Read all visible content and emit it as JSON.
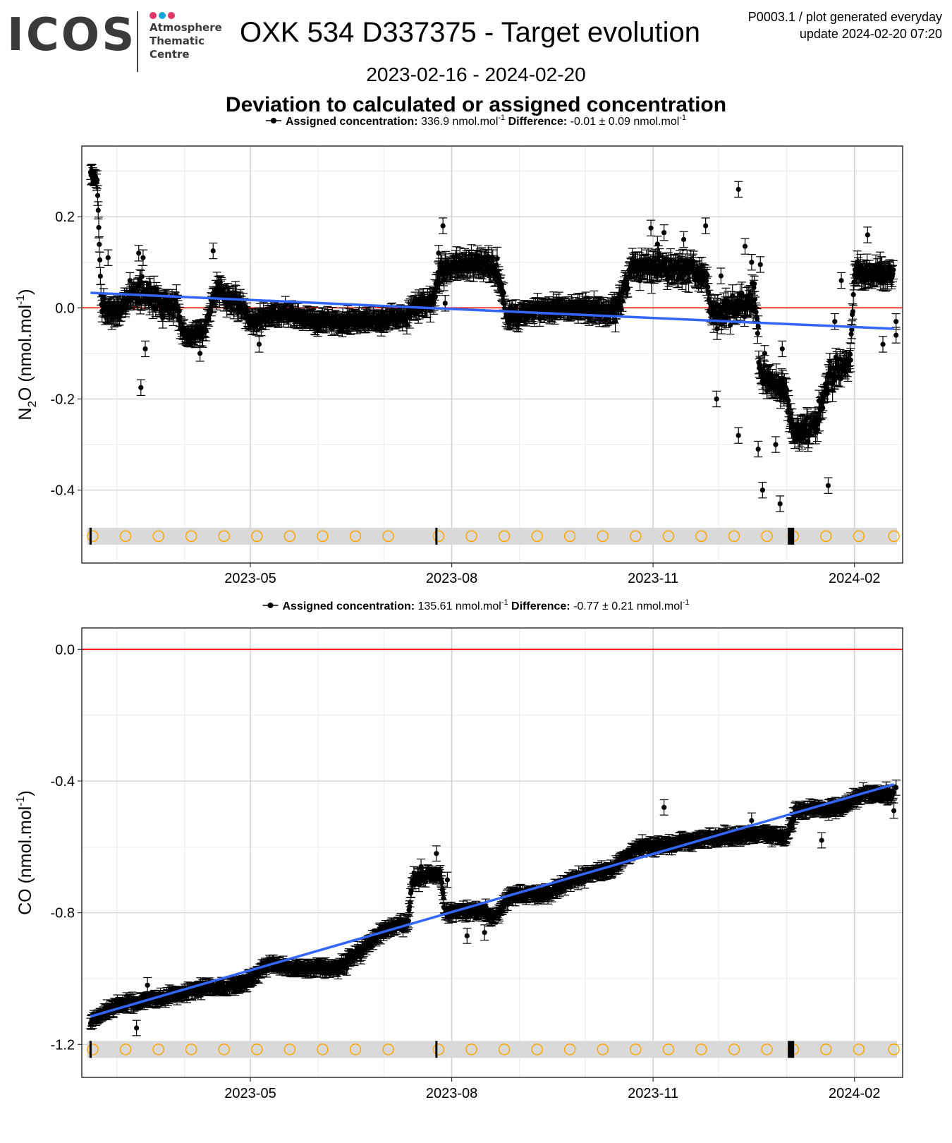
{
  "header": {
    "logo_text": "ICOS",
    "logo_subtitle_lines": [
      "Atmosphere",
      "Thematic",
      "Centre"
    ],
    "logo_dot_colors": [
      "#e4366b",
      "#1aa6d9",
      "#e4366b"
    ],
    "title": "OXK 534 D337375 - Target evolution",
    "meta_line1": "P0003.1 / plot generated everyday",
    "meta_line2": "update  2024-02-20 07:20",
    "date_range": "2023-02-16 - 2024-02-20",
    "section_title": "Deviation to calculated or assigned concentration"
  },
  "colors": {
    "points": "#000000",
    "trend": "#3366ff",
    "reference": "#ff0000",
    "panel_border": "#333333",
    "grid_major": "#d0d0d0",
    "grid_minor": "#ebebeb",
    "band": "#d9d9d9",
    "circle": "#ffa500"
  },
  "chart_data": [
    {
      "type": "scatter",
      "ylabel_main": "N",
      "ylabel_sub": "2",
      "ylabel_rest": "O (nmol.mol",
      "ylabel_sup": "-1",
      "ylabel_close": ")",
      "legend": {
        "assigned_label": "Assigned concentration:",
        "assigned_value": "336.9 nmol.mol",
        "difference_label": "Difference:",
        "difference_value": "-0.01 ± 0.09 nmol.mol",
        "unit_sup": "-1"
      },
      "x_range": [
        "2023-02-13",
        "2024-02-23"
      ],
      "x_ticks": [
        "2023-05",
        "2023-08",
        "2023-11",
        "2024-02"
      ],
      "x_tick_dates": [
        "2023-05-01",
        "2023-08-01",
        "2023-11-01",
        "2024-02-01"
      ],
      "y_range": [
        -0.56,
        0.355
      ],
      "y_ticks": [
        0.2,
        0.0,
        -0.2,
        -0.4
      ],
      "y_tick_labels": [
        "0.2",
        "0.0",
        "-0.2",
        "-0.4"
      ],
      "reference_y": 0.0,
      "trend": {
        "x": [
          "2023-02-17",
          "2024-02-19"
        ],
        "y": [
          0.033,
          -0.046
        ]
      },
      "band_y": -0.501,
      "cycle_markers": [
        "2023-02-17",
        "2023-07-25",
        "2024-01-03"
      ],
      "circle_dates": [
        "2023-02-18",
        "2023-03-05",
        "2023-03-20",
        "2023-04-04",
        "2023-04-19",
        "2023-05-04",
        "2023-05-19",
        "2023-06-03",
        "2023-06-18",
        "2023-07-03",
        "2023-07-26",
        "2023-08-10",
        "2023-08-25",
        "2023-09-09",
        "2023-09-24",
        "2023-10-09",
        "2023-10-24",
        "2023-11-08",
        "2023-11-23",
        "2023-12-08",
        "2023-12-23",
        "2024-01-04",
        "2024-01-19",
        "2024-02-03",
        "2024-02-19"
      ],
      "series_profile": [
        [
          "2023-02-17",
          0.295,
          0.012,
          0.03
        ],
        [
          "2023-02-20",
          0.28,
          0.012,
          0.03
        ],
        [
          "2023-02-22",
          0.0,
          0.04,
          0.035
        ],
        [
          "2023-03-01",
          -0.01,
          0.04,
          0.035
        ],
        [
          "2023-03-10",
          0.04,
          0.05,
          0.035
        ],
        [
          "2023-03-20",
          0.02,
          0.06,
          0.035
        ],
        [
          "2023-03-28",
          0.0,
          0.05,
          0.035
        ],
        [
          "2023-04-01",
          -0.06,
          0.03,
          0.03
        ],
        [
          "2023-04-10",
          -0.05,
          0.03,
          0.03
        ],
        [
          "2023-04-15",
          0.04,
          0.05,
          0.035
        ],
        [
          "2023-04-28",
          0.0,
          0.04,
          0.035
        ],
        [
          "2023-05-01",
          -0.03,
          0.03,
          0.03
        ],
        [
          "2023-05-15",
          -0.01,
          0.035,
          0.03
        ],
        [
          "2023-06-01",
          -0.03,
          0.03,
          0.03
        ],
        [
          "2023-06-20",
          -0.03,
          0.03,
          0.03
        ],
        [
          "2023-07-10",
          -0.02,
          0.03,
          0.03
        ],
        [
          "2023-07-24",
          0.02,
          0.05,
          0.035
        ],
        [
          "2023-07-27",
          0.08,
          0.06,
          0.035
        ],
        [
          "2023-08-10",
          0.1,
          0.05,
          0.035
        ],
        [
          "2023-08-22",
          0.08,
          0.05,
          0.035
        ],
        [
          "2023-08-26",
          -0.02,
          0.035,
          0.03
        ],
        [
          "2023-09-20",
          0.0,
          0.035,
          0.03
        ],
        [
          "2023-10-15",
          -0.01,
          0.04,
          0.035
        ],
        [
          "2023-10-23",
          0.09,
          0.05,
          0.035
        ],
        [
          "2023-11-10",
          0.09,
          0.05,
          0.035
        ],
        [
          "2023-11-25",
          0.07,
          0.05,
          0.035
        ],
        [
          "2023-11-28",
          -0.02,
          0.06,
          0.035
        ],
        [
          "2023-12-10",
          0.0,
          0.06,
          0.035
        ],
        [
          "2023-12-18",
          0.02,
          0.07,
          0.035
        ],
        [
          "2023-12-20",
          -0.15,
          0.07,
          0.035
        ],
        [
          "2023-12-31",
          -0.18,
          0.05,
          0.035
        ],
        [
          "2024-01-04",
          -0.28,
          0.05,
          0.035
        ],
        [
          "2024-01-15",
          -0.25,
          0.05,
          0.035
        ],
        [
          "2024-01-20",
          -0.15,
          0.06,
          0.035
        ],
        [
          "2024-01-30",
          -0.12,
          0.05,
          0.035
        ],
        [
          "2024-02-01",
          0.08,
          0.04,
          0.035
        ],
        [
          "2024-02-19",
          0.07,
          0.04,
          0.035
        ]
      ],
      "points_per_day": 4,
      "outliers": [
        [
          "2023-02-25",
          0.11
        ],
        [
          "2023-03-07",
          0.06
        ],
        [
          "2023-03-12",
          -0.175
        ],
        [
          "2023-03-14",
          -0.09
        ],
        [
          "2023-03-11",
          0.12
        ],
        [
          "2023-03-13",
          0.11
        ],
        [
          "2023-04-14",
          0.125
        ],
        [
          "2023-04-08",
          -0.1
        ],
        [
          "2023-05-05",
          -0.08
        ],
        [
          "2023-07-28",
          0.18
        ],
        [
          "2023-07-26",
          0.12
        ],
        [
          "2023-07-29",
          0.01
        ],
        [
          "2023-10-31",
          0.175
        ],
        [
          "2023-11-06",
          0.165
        ],
        [
          "2023-11-03",
          0.14
        ],
        [
          "2023-11-15",
          0.15
        ],
        [
          "2023-11-25",
          0.18
        ],
        [
          "2023-11-30",
          -0.2
        ],
        [
          "2023-12-02",
          0.07
        ],
        [
          "2023-12-10",
          0.26
        ],
        [
          "2023-12-10",
          -0.28
        ],
        [
          "2023-12-13",
          0.135
        ],
        [
          "2023-12-16",
          0.1
        ],
        [
          "2023-12-20",
          0.095
        ],
        [
          "2023-12-19",
          -0.31
        ],
        [
          "2023-12-21",
          -0.4
        ],
        [
          "2023-12-22",
          -0.1
        ],
        [
          "2023-12-27",
          -0.3
        ],
        [
          "2023-12-29",
          -0.43
        ],
        [
          "2023-12-30",
          -0.09
        ],
        [
          "2024-01-20",
          -0.39
        ],
        [
          "2024-01-23",
          -0.03
        ],
        [
          "2024-01-26",
          0.06
        ],
        [
          "2024-02-07",
          0.16
        ],
        [
          "2024-02-14",
          -0.08
        ],
        [
          "2024-02-20",
          -0.06
        ],
        [
          "2024-02-20",
          -0.03
        ]
      ],
      "seed": 7
    },
    {
      "type": "scatter",
      "ylabel_main": "CO",
      "ylabel_sub": "",
      "ylabel_rest": " (nmol.mol",
      "ylabel_sup": "-1",
      "ylabel_close": ")",
      "legend": {
        "assigned_label": "Assigned concentration:",
        "assigned_value": "135.61 nmol.mol",
        "difference_label": "Difference:",
        "difference_value": "-0.77 ± 0.21 nmol.mol",
        "unit_sup": "-1"
      },
      "x_range": [
        "2023-02-13",
        "2024-02-23"
      ],
      "x_ticks": [
        "2023-05",
        "2023-08",
        "2023-11",
        "2024-02"
      ],
      "x_tick_dates": [
        "2023-05-01",
        "2023-08-01",
        "2023-11-01",
        "2024-02-01"
      ],
      "y_range": [
        -1.3,
        0.065
      ],
      "y_ticks": [
        0.0,
        -0.4,
        -0.8,
        -1.2
      ],
      "y_tick_labels": [
        "0.0",
        "-0.4",
        "-0.8",
        "-1.2"
      ],
      "reference_y": 0.0,
      "trend": {
        "x": [
          "2023-02-17",
          "2024-02-19"
        ],
        "y": [
          -1.115,
          -0.41
        ]
      },
      "band_y": -1.215,
      "cycle_markers": [
        "2023-02-17",
        "2023-07-25",
        "2024-01-03"
      ],
      "circle_dates": [
        "2023-02-18",
        "2023-03-05",
        "2023-03-20",
        "2023-04-04",
        "2023-04-19",
        "2023-05-04",
        "2023-05-19",
        "2023-06-03",
        "2023-06-18",
        "2023-07-03",
        "2023-07-26",
        "2023-08-10",
        "2023-08-25",
        "2023-09-09",
        "2023-09-24",
        "2023-10-09",
        "2023-10-24",
        "2023-11-08",
        "2023-11-23",
        "2023-12-08",
        "2023-12-23",
        "2024-01-04",
        "2024-01-19",
        "2024-02-03",
        "2024-02-19"
      ],
      "series_profile": [
        [
          "2023-02-17",
          -1.13,
          0.02,
          0.03
        ],
        [
          "2023-03-01",
          -1.08,
          0.03,
          0.03
        ],
        [
          "2023-03-20",
          -1.06,
          0.03,
          0.03
        ],
        [
          "2023-04-10",
          -1.03,
          0.03,
          0.03
        ],
        [
          "2023-04-28",
          -1.02,
          0.03,
          0.03
        ],
        [
          "2023-05-10",
          -0.95,
          0.03,
          0.03
        ],
        [
          "2023-05-20",
          -0.97,
          0.03,
          0.03
        ],
        [
          "2023-06-10",
          -0.97,
          0.03,
          0.03
        ],
        [
          "2023-06-20",
          -0.92,
          0.035,
          0.03
        ],
        [
          "2023-07-01",
          -0.85,
          0.03,
          0.03
        ],
        [
          "2023-07-12",
          -0.83,
          0.03,
          0.03
        ],
        [
          "2023-07-14",
          -0.7,
          0.035,
          0.03
        ],
        [
          "2023-07-27",
          -0.68,
          0.035,
          0.03
        ],
        [
          "2023-07-29",
          -0.8,
          0.03,
          0.03
        ],
        [
          "2023-08-15",
          -0.79,
          0.03,
          0.03
        ],
        [
          "2023-08-20",
          -0.82,
          0.03,
          0.03
        ],
        [
          "2023-08-27",
          -0.75,
          0.03,
          0.03
        ],
        [
          "2023-09-15",
          -0.74,
          0.03,
          0.03
        ],
        [
          "2023-09-25",
          -0.7,
          0.03,
          0.03
        ],
        [
          "2023-10-15",
          -0.66,
          0.03,
          0.03
        ],
        [
          "2023-10-25",
          -0.6,
          0.03,
          0.03
        ],
        [
          "2023-11-10",
          -0.59,
          0.03,
          0.03
        ],
        [
          "2023-12-01",
          -0.57,
          0.03,
          0.03
        ],
        [
          "2023-12-20",
          -0.56,
          0.03,
          0.03
        ],
        [
          "2024-01-01",
          -0.57,
          0.03,
          0.03
        ],
        [
          "2024-01-05",
          -0.49,
          0.03,
          0.03
        ],
        [
          "2024-01-25",
          -0.48,
          0.03,
          0.03
        ],
        [
          "2024-02-05",
          -0.44,
          0.03,
          0.03
        ],
        [
          "2024-02-19",
          -0.44,
          0.03,
          0.03
        ]
      ],
      "points_per_day": 4,
      "outliers": [
        [
          "2023-03-15",
          -1.02
        ],
        [
          "2023-03-10",
          -1.15
        ],
        [
          "2023-07-25",
          -0.62
        ],
        [
          "2023-07-18",
          -0.66
        ],
        [
          "2023-07-30",
          -0.7
        ],
        [
          "2023-08-08",
          -0.87
        ],
        [
          "2023-08-16",
          -0.86
        ],
        [
          "2023-11-06",
          -0.48
        ],
        [
          "2023-12-16",
          -0.52
        ],
        [
          "2024-01-17",
          -0.58
        ],
        [
          "2024-02-19",
          -0.49
        ],
        [
          "2024-02-20",
          -0.42
        ]
      ],
      "seed": 19
    }
  ]
}
